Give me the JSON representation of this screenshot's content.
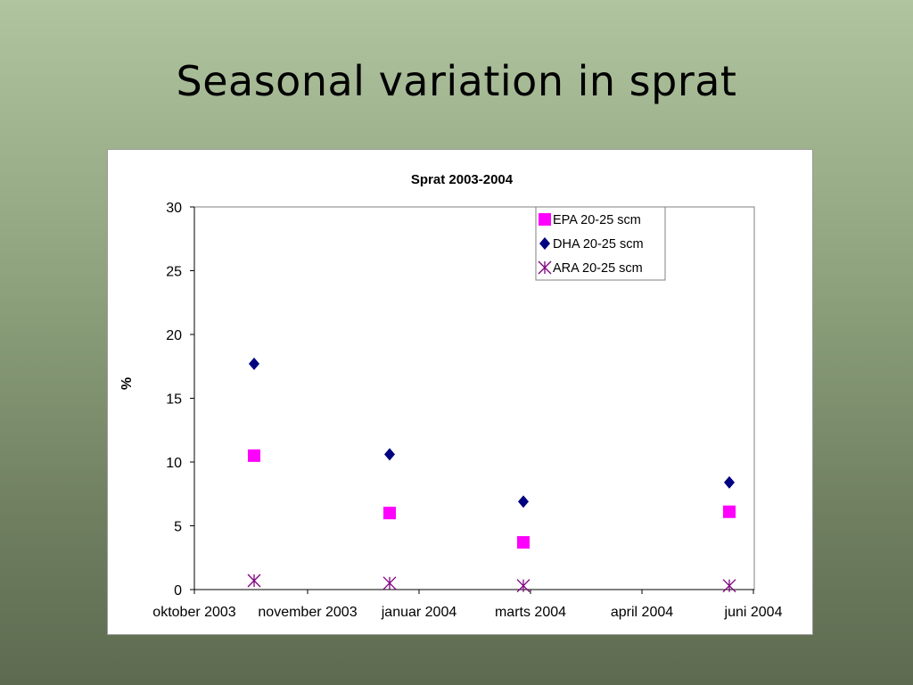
{
  "slide": {
    "title": "Seasonal variation in sprat"
  },
  "chart_data": {
    "type": "scatter",
    "title": "Sprat 2003-2004",
    "xlabel": "",
    "ylabel": "%",
    "ylim": [
      0,
      30
    ],
    "yticks": [
      0,
      5,
      10,
      15,
      20,
      25,
      30
    ],
    "x": [
      "oktober 2003",
      "november 2003",
      "januar 2004",
      "marts 2004",
      "april 2004",
      "juni 2004"
    ],
    "xticklabels": [
      "oktober 2003",
      "november 2003",
      "januar 2004",
      "marts 2004",
      "april 2004",
      "juni 2004"
    ],
    "series": [
      {
        "name": "EPA 20-25 scm",
        "marker": "square",
        "color": "#ff00ff",
        "points": [
          {
            "x": "oktober 2003",
            "y": 10.5
          },
          {
            "x": "januar 2004",
            "y": 6.0
          },
          {
            "x": "marts 2004",
            "y": 3.7
          },
          {
            "x": "juni 2004",
            "y": 6.1
          }
        ]
      },
      {
        "name": "DHA 20-25 scm",
        "marker": "diamond",
        "color": "#000080",
        "points": [
          {
            "x": "oktober 2003",
            "y": 17.7
          },
          {
            "x": "januar 2004",
            "y": 10.6
          },
          {
            "x": "marts 2004",
            "y": 6.9
          },
          {
            "x": "juni 2004",
            "y": 8.4
          }
        ]
      },
      {
        "name": "ARA 20-25 scm",
        "marker": "asterisk",
        "color": "#800080",
        "points": [
          {
            "x": "oktober 2003",
            "y": 0.7
          },
          {
            "x": "januar 2004",
            "y": 0.5
          },
          {
            "x": "marts 2004",
            "y": 0.3
          },
          {
            "x": "juni 2004",
            "y": 0.3
          }
        ]
      }
    ],
    "legend": "top-right",
    "grid": false
  }
}
